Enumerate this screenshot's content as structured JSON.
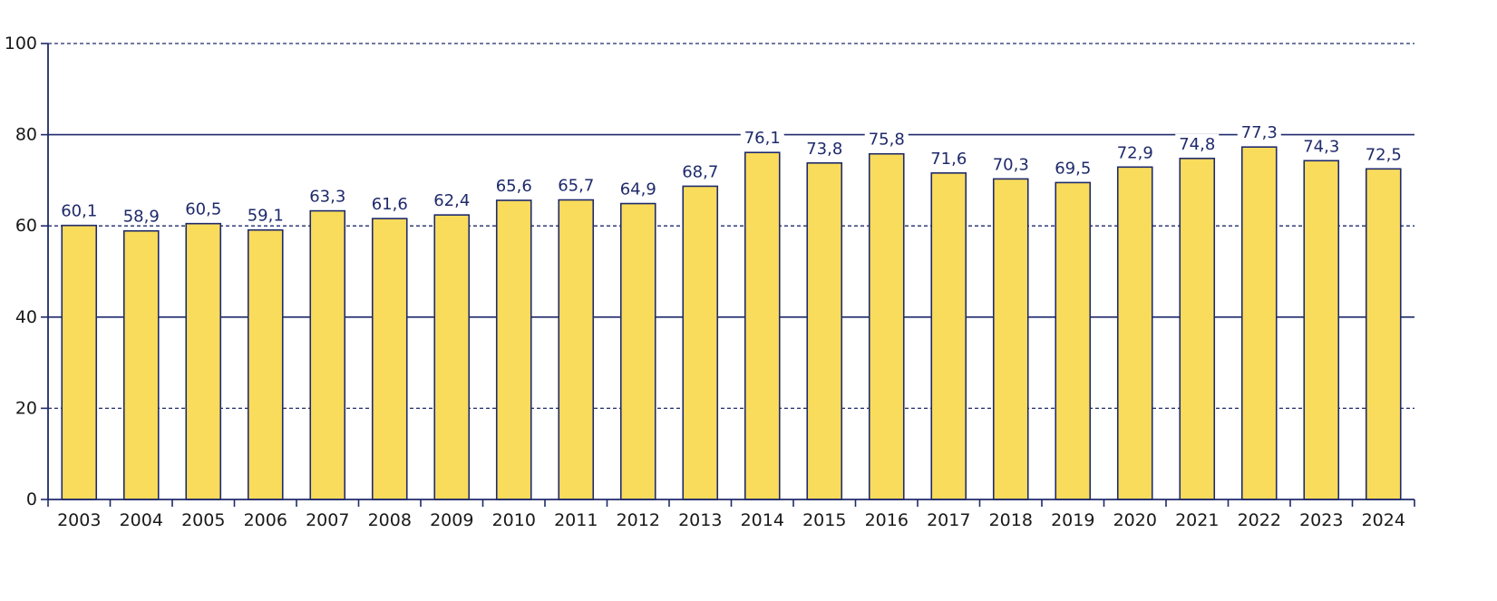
{
  "chart_data": {
    "type": "bar",
    "title": "",
    "xlabel": "",
    "ylabel": "",
    "categories": [
      "2003",
      "2004",
      "2005",
      "2006",
      "2007",
      "2008",
      "2009",
      "2010",
      "2011",
      "2012",
      "2013",
      "2014",
      "2015",
      "2016",
      "2017",
      "2018",
      "2019",
      "2020",
      "2021",
      "2022",
      "2023",
      "2024"
    ],
    "values": [
      60.1,
      58.9,
      60.5,
      59.1,
      63.3,
      61.6,
      62.4,
      65.6,
      65.7,
      64.9,
      68.7,
      76.1,
      73.8,
      75.8,
      71.6,
      70.3,
      69.5,
      72.9,
      74.8,
      77.3,
      74.3,
      72.5
    ],
    "value_labels": [
      "60,1",
      "58,9",
      "60,5",
      "59,1",
      "63,3",
      "61,6",
      "62,4",
      "65,6",
      "65,7",
      "64,9",
      "68,7",
      "76,1",
      "73,8",
      "75,8",
      "71,6",
      "70,3",
      "69,5",
      "72,9",
      "74,8",
      "77,3",
      "74,3",
      "72,5"
    ],
    "ylim": [
      0,
      100
    ],
    "yticks": [
      0,
      20,
      40,
      60,
      80,
      100
    ],
    "ytick_labels": [
      "0",
      "20",
      "40",
      "60",
      "80",
      "100"
    ],
    "grid": true,
    "grid_style": "alternating solid (40, 80) and dashed (20, 60, 100)",
    "legend": "none",
    "colors": {
      "bar_fill": "#f9dc5c",
      "bar_stroke": "#1f2a6b",
      "axis": "#1f2a6b",
      "grid": "#1f2a6b",
      "value_label": "#1f2a6b",
      "tick_label": "#1a1a1a"
    }
  }
}
